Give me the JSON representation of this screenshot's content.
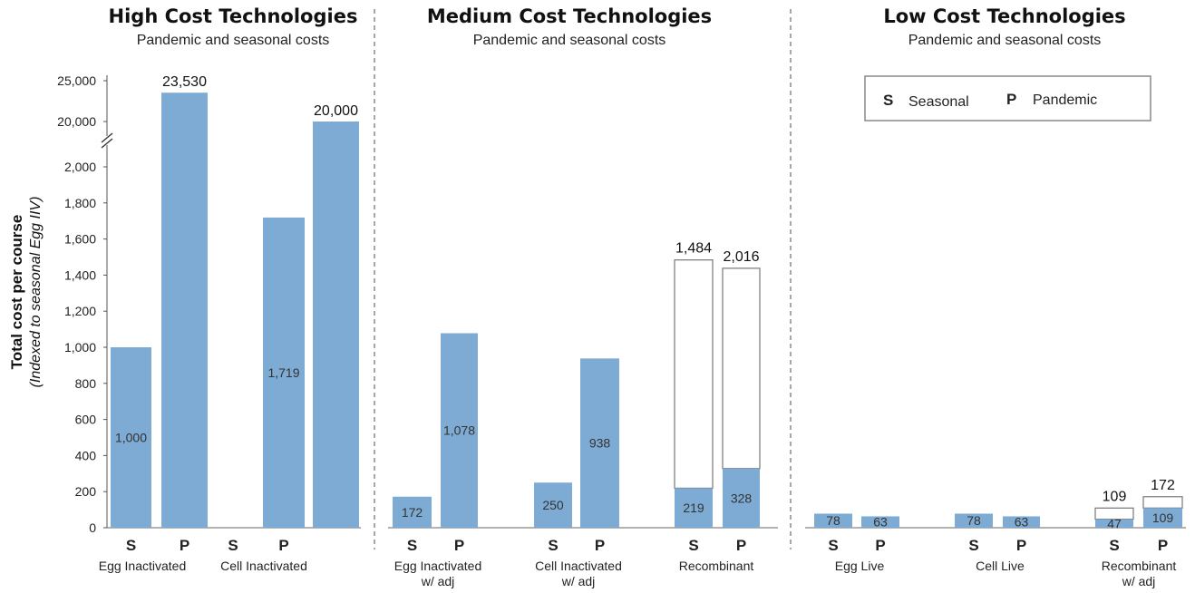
{
  "panels": [
    {
      "title": "High Cost Technologies",
      "subtitle": "Pandemic and seasonal costs"
    },
    {
      "title": "Medium Cost Technologies",
      "subtitle": "Pandemic and seasonal costs"
    },
    {
      "title": "Low Cost Technologies",
      "subtitle": "Pandemic and seasonal costs"
    }
  ],
  "y_axis": {
    "label": "Total cost per course",
    "sublabel": "(Indexed to seasonal Egg IIV)",
    "ticks_lower": [
      "0",
      "200",
      "400",
      "600",
      "800",
      "1,000",
      "1,200",
      "1,400",
      "1,600",
      "1,800",
      "2,000"
    ],
    "ticks_upper": [
      "20,000",
      "25,000"
    ]
  },
  "legend": {
    "s_key": "S",
    "s_label": "Seasonal",
    "p_key": "P",
    "p_label": "Pandemic"
  },
  "colors": {
    "bar": "#7eabd3",
    "outline": "#777777",
    "upper_fill": "#ffffff",
    "divider": "#888888"
  },
  "chart_data": {
    "type": "bar",
    "ylim": [
      0,
      2000
    ],
    "ylim_broken_upper": [
      20000,
      25000
    ],
    "axis_break": "between 2,000 and 20,000",
    "legend_position": "top-right of Low Cost panel",
    "bars": [
      {
        "panel": 0,
        "group": "Egg Inactivated",
        "type": "S",
        "value": 1000,
        "label": "1,000",
        "label_pos": "inside"
      },
      {
        "panel": 0,
        "group": "Egg Inactivated",
        "type": "P",
        "value": 23530,
        "label": "23,530",
        "label_pos": "top"
      },
      {
        "panel": 0,
        "group": "Cell Inactivated",
        "type": "S",
        "value": null
      },
      {
        "panel": 0,
        "group": "Cell Inactivated",
        "type": "P",
        "value": 1719,
        "label": "1,719",
        "label_pos": "inside"
      },
      {
        "panel": 0,
        "group": "Cell Inactivated",
        "type": "",
        "value": 20000,
        "label": "20,000",
        "label_pos": "top"
      },
      {
        "panel": 1,
        "group": "Egg Inactivated w/ adj",
        "type": "S",
        "value": 172,
        "label": "172",
        "label_pos": "inside"
      },
      {
        "panel": 1,
        "group": "Egg Inactivated w/ adj",
        "type": "P",
        "value": 1078,
        "label": "1,078",
        "label_pos": "inside"
      },
      {
        "panel": 1,
        "group": "Cell Inactivated w/ adj",
        "type": "S",
        "value": 250,
        "label": "250",
        "label_pos": "inside"
      },
      {
        "panel": 1,
        "group": "Cell Inactivated w/ adj",
        "type": "P",
        "value": 938,
        "label": "938",
        "label_pos": "inside"
      },
      {
        "panel": 1,
        "group": "Recombinant",
        "type": "S",
        "value": 219,
        "upper": 1484,
        "label": "219",
        "top_label": "1,484"
      },
      {
        "panel": 1,
        "group": "Recombinant",
        "type": "P",
        "value": 328,
        "upper": 2016,
        "label": "328",
        "top_label": "2,016"
      },
      {
        "panel": 2,
        "group": "Egg Live",
        "type": "S",
        "value": 78,
        "label": "78",
        "label_pos": "inside"
      },
      {
        "panel": 2,
        "group": "Egg Live",
        "type": "P",
        "value": 63,
        "label": "63",
        "label_pos": "inside"
      },
      {
        "panel": 2,
        "group": "Cell Live",
        "type": "S",
        "value": 78,
        "label": "78",
        "label_pos": "inside"
      },
      {
        "panel": 2,
        "group": "Cell Live",
        "type": "P",
        "value": 63,
        "label": "63",
        "label_pos": "inside"
      },
      {
        "panel": 2,
        "group": "Recombinant w/ adj",
        "type": "S",
        "value": 47,
        "upper": 109,
        "label": "47",
        "top_label": "109"
      },
      {
        "panel": 2,
        "group": "Recombinant w/ adj",
        "type": "P",
        "value": 109,
        "upper": 172,
        "label": "109",
        "top_label": "172"
      }
    ],
    "group_labels": [
      {
        "panel": 0,
        "lines": [
          "Egg Inactivated"
        ]
      },
      {
        "panel": 0,
        "lines": [
          "Cell Inactivated"
        ]
      },
      {
        "panel": 1,
        "lines": [
          "Egg Inactivated",
          "w/ adj"
        ]
      },
      {
        "panel": 1,
        "lines": [
          "Cell Inactivated",
          "w/ adj"
        ]
      },
      {
        "panel": 1,
        "lines": [
          "Recombinant"
        ]
      },
      {
        "panel": 2,
        "lines": [
          "Egg Live"
        ]
      },
      {
        "panel": 2,
        "lines": [
          "Cell Live"
        ]
      },
      {
        "panel": 2,
        "lines": [
          "Recombinant",
          "w/ adj"
        ]
      }
    ]
  }
}
